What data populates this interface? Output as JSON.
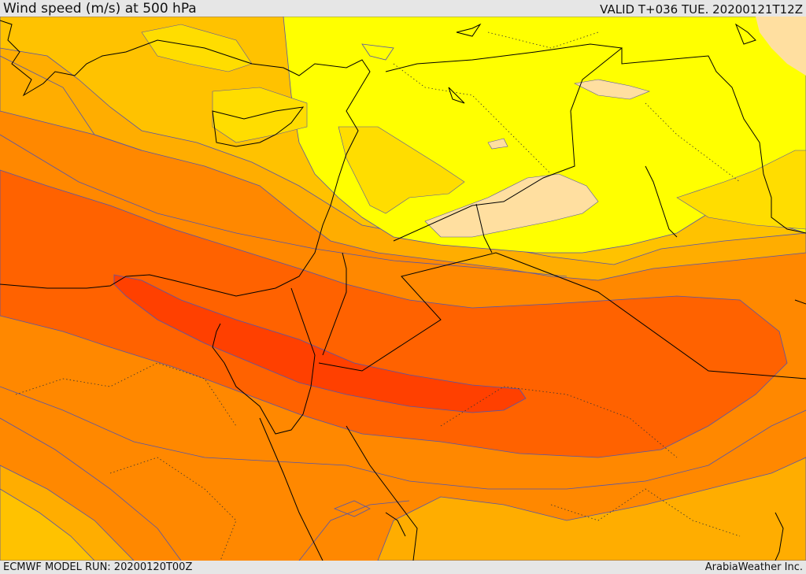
{
  "header": {
    "title": "Wind speed (m/s) at 500 hPa",
    "valid": "VALID T+036 TUE. 20200121T12Z"
  },
  "footer": {
    "model_run": "ECMWF MODEL RUN: 20200120T00Z",
    "credit": "ArabiaWeather Inc."
  },
  "colors": {
    "background": "#e6e6e6",
    "band_light_orange": "#ffc200",
    "band_orange": "#ff8800",
    "band_dark_orange": "#ff6200",
    "band_red_orange": "#ff4000",
    "band_gold": "#ffad00",
    "band_yellow": "#ffff00",
    "band_pale_yellow": "#ffdd00",
    "band_tan": "#ffdfa0",
    "contour_line": "#5555aa",
    "coastline": "#000000"
  }
}
